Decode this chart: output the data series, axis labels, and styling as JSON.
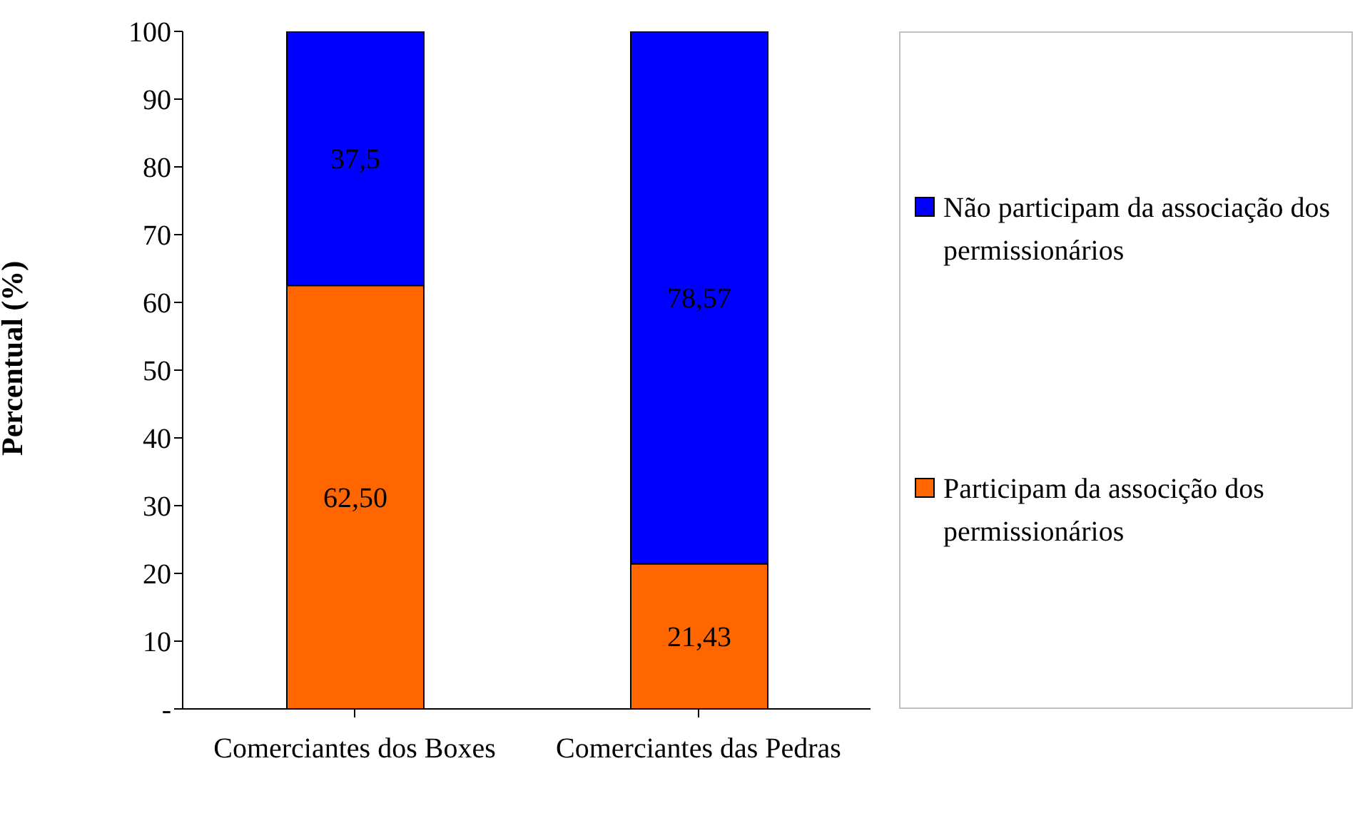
{
  "chart_data": {
    "type": "bar",
    "stacked": true,
    "ylabel": "Percentual (%)",
    "categories": [
      "Comerciantes dos Boxes",
      "Comerciantes das Pedras"
    ],
    "series": [
      {
        "name": "Participam da associção dos permissionários",
        "color": "#ff6600",
        "values": [
          62.5,
          21.43
        ],
        "value_labels": [
          "62,50",
          "21,43"
        ]
      },
      {
        "name": "Não participam da associação dos permissionários",
        "color": "#0000ff",
        "values": [
          37.5,
          78.57
        ],
        "value_labels": [
          "37,5",
          "78,57"
        ]
      }
    ],
    "ylim": [
      0,
      100
    ],
    "yticks": [
      {
        "value": 0,
        "label": "-"
      },
      10,
      20,
      30,
      40,
      50,
      60,
      70,
      80,
      90,
      100
    ],
    "legend": "right",
    "grid": false
  }
}
